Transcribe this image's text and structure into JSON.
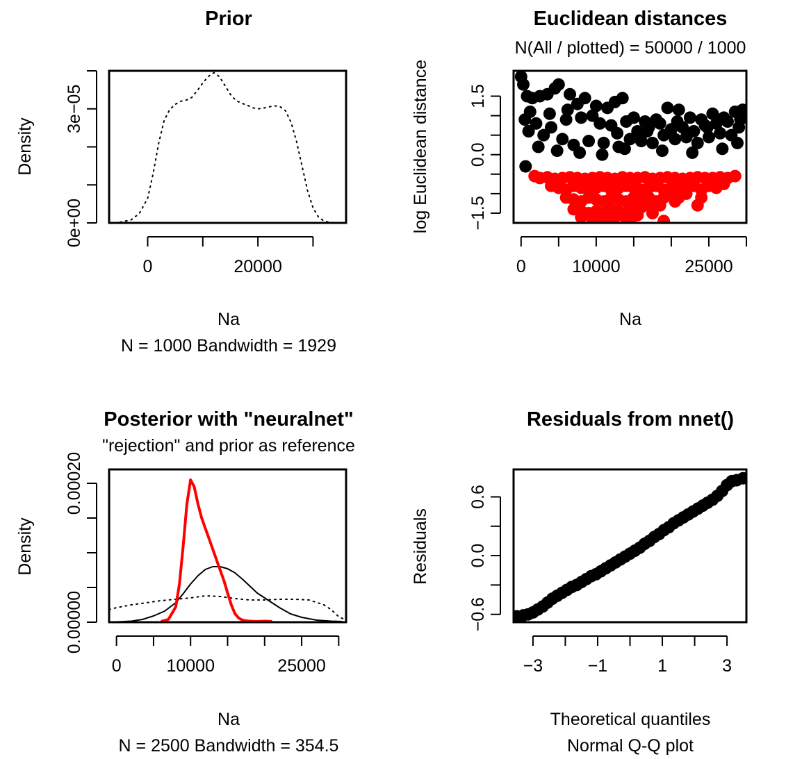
{
  "chart_data": [
    {
      "type": "line",
      "title": "Prior",
      "xlabel": "Na",
      "ylabel": "Density",
      "subtitle": "N = 1000   Bandwidth = 1929",
      "xlim": [
        -7000,
        36000
      ],
      "ylim": [
        0,
        4e-05
      ],
      "xticks": [
        0,
        10000,
        20000,
        30000
      ],
      "xtick_labels": [
        "0",
        "",
        "20000",
        ""
      ],
      "yticks": [
        0,
        1e-05,
        2e-05,
        3e-05,
        4e-05
      ],
      "ytick_labels": [
        "0e+00",
        "",
        "",
        "3e-05",
        ""
      ],
      "baseline": 0,
      "series": [
        {
          "style": "dotted",
          "color": "#000000",
          "x": [
            -5000,
            -3000,
            -1500,
            0,
            1000,
            2000,
            3000,
            4000,
            5000,
            6000,
            7000,
            8000,
            9000,
            10000,
            11000,
            12000,
            13000,
            14000,
            15000,
            16000,
            17000,
            18000,
            19000,
            20000,
            21000,
            22000,
            23000,
            24000,
            25000,
            26000,
            27000,
            28000,
            29000,
            30000,
            31000,
            32000,
            33000,
            34000
          ],
          "y": [
            2e-07,
            8e-07,
            2.5e-06,
            6.5e-06,
            1.3e-05,
            2.1e-05,
            2.7e-05,
            2.98e-05,
            3.12e-05,
            3.2e-05,
            3.23e-05,
            3.3e-05,
            3.48e-05,
            3.68e-05,
            3.85e-05,
            3.95e-05,
            3.85e-05,
            3.62e-05,
            3.38e-05,
            3.22e-05,
            3.15e-05,
            3.1e-05,
            3.03e-05,
            3e-05,
            3.02e-05,
            3.05e-05,
            3.08e-05,
            3.06e-05,
            2.95e-05,
            2.65e-05,
            2.15e-05,
            1.5e-05,
            8.5e-06,
            4e-06,
            1.5e-06,
            5e-07,
            1.5e-07,
            5e-08
          ]
        }
      ]
    },
    {
      "type": "scatter",
      "title": "Euclidean distances",
      "subtitle": "N(All / plotted) =  50000 / 1000",
      "xlabel": "Na",
      "ylabel": "log Euclidean distance",
      "xlim": [
        -1000,
        30000
      ],
      "ylim": [
        -1.75,
        2.15
      ],
      "xticks": [
        0,
        5000,
        10000,
        15000,
        20000,
        25000,
        30000
      ],
      "xtick_labels": [
        "0",
        "",
        "10000",
        "",
        "",
        "25000",
        ""
      ],
      "yticks": [
        -1.5,
        -1.0,
        -0.5,
        0.0,
        0.5,
        1.0,
        1.5
      ],
      "ytick_labels": [
        "-1.5",
        "",
        "",
        "0.0",
        "",
        "",
        "1.5"
      ],
      "series": [
        {
          "name": "",
          "color": "#000000",
          "x": [
            0,
            300,
            800,
            1500,
            2500,
            3500,
            4500,
            5000,
            6500,
            7500,
            8500,
            10000,
            11500,
            12500,
            13500,
            15000,
            16500,
            18000,
            19500,
            21000,
            22500,
            24000,
            25500,
            27000,
            28500,
            29500,
            1000,
            3000,
            5500,
            7000,
            9000,
            11000,
            13000,
            14500,
            16000,
            17500,
            19000,
            20500,
            22000,
            23500,
            25000,
            26500,
            28000,
            29000,
            500,
            2000,
            4000,
            6000,
            8000,
            10500,
            12000,
            14000,
            15500,
            17000,
            18500,
            20000,
            21500,
            23000,
            24500,
            26000,
            27500,
            29200,
            1200,
            3800,
            6200,
            9500,
            12800,
            16800,
            20800,
            24800,
            28800,
            2300,
            4800,
            7800,
            10800,
            13800,
            18800,
            22800,
            26800,
            600
          ],
          "y": [
            2.0,
            1.8,
            1.5,
            1.45,
            1.5,
            1.55,
            1.7,
            1.8,
            1.55,
            1.3,
            1.45,
            1.25,
            1.2,
            1.35,
            1.45,
            0.95,
            0.85,
            0.9,
            1.2,
            1.15,
            0.95,
            0.9,
            1.05,
            0.95,
            1.1,
            1.15,
            0.6,
            0.5,
            0.4,
            0.25,
            0.35,
            0.3,
            0.2,
            0.4,
            0.35,
            0.3,
            0.5,
            0.4,
            0.45,
            0.3,
            0.45,
            0.55,
            0.5,
            0.7,
            0.9,
            0.8,
            0.7,
            0.9,
            0.95,
            0.8,
            0.75,
            0.85,
            0.6,
            0.7,
            0.8,
            0.65,
            0.7,
            0.6,
            0.75,
            0.8,
            0.85,
            0.9,
            1.1,
            1.05,
            1.15,
            1.0,
            0.55,
            0.6,
            0.85,
            0.7,
            0.3,
            0.2,
            0.1,
            0.05,
            0.0,
            0.15,
            0.1,
            0.05,
            0.15,
            -0.3
          ]
        },
        {
          "name": "",
          "color": "#ff0000",
          "x": [
            1800,
            2500,
            3500,
            4500,
            5500,
            6500,
            7500,
            8500,
            9500,
            10500,
            11500,
            12500,
            13500,
            14500,
            15500,
            16500,
            17500,
            18500,
            19500,
            20500,
            21500,
            22500,
            23500,
            24500,
            25500,
            26500,
            27500,
            28500,
            4000,
            5000,
            6000,
            7000,
            8000,
            9000,
            10000,
            11000,
            12000,
            13000,
            14000,
            15000,
            16000,
            17000,
            18000,
            19000,
            20000,
            21000,
            22000,
            23000,
            24000,
            25000,
            26000,
            27000,
            6000,
            7000,
            8000,
            9000,
            10000,
            11000,
            12000,
            13000,
            14000,
            15000,
            16000,
            17000,
            18000,
            19000,
            20000,
            21000,
            22000,
            24000,
            7000,
            8000,
            9000,
            10000,
            11000,
            12000,
            13000,
            14000,
            15000,
            16000,
            17000,
            18500,
            20500,
            23500,
            8000,
            9500,
            11000,
            12500,
            14000,
            15500,
            17500,
            10000,
            12000,
            14500,
            19000
          ],
          "y": [
            -0.55,
            -0.6,
            -0.58,
            -0.62,
            -0.6,
            -0.58,
            -0.6,
            -0.62,
            -0.6,
            -0.58,
            -0.6,
            -0.62,
            -0.58,
            -0.6,
            -0.6,
            -0.58,
            -0.62,
            -0.6,
            -0.58,
            -0.6,
            -0.62,
            -0.6,
            -0.58,
            -0.6,
            -0.6,
            -0.58,
            -0.6,
            -0.55,
            -0.8,
            -0.85,
            -0.9,
            -0.8,
            -0.85,
            -0.9,
            -0.85,
            -0.8,
            -0.9,
            -0.85,
            -0.8,
            -0.85,
            -0.9,
            -0.85,
            -0.8,
            -0.9,
            -0.85,
            -0.8,
            -0.85,
            -0.8,
            -0.9,
            -0.8,
            -0.85,
            -0.75,
            -1.1,
            -1.15,
            -1.2,
            -1.1,
            -1.15,
            -1.2,
            -1.1,
            -1.15,
            -1.2,
            -1.1,
            -1.15,
            -1.1,
            -1.2,
            -1.1,
            -1.05,
            -1.1,
            -1.0,
            -1.1,
            -1.4,
            -1.45,
            -1.5,
            -1.45,
            -1.5,
            -1.4,
            -1.45,
            -1.5,
            -1.4,
            -1.35,
            -1.3,
            -1.3,
            -1.2,
            -1.3,
            -1.6,
            -1.65,
            -1.7,
            -1.6,
            -1.65,
            -1.55,
            -1.5,
            -1.75,
            -1.72,
            -1.7,
            -1.7
          ]
        }
      ]
    },
    {
      "type": "line",
      "title": "Posterior with \"neuralnet\"",
      "subtitle": "\"rejection\" and prior as reference",
      "xlabel": "Na",
      "ylabel": "Density",
      "caption": "N = 2500   Bandwidth = 354.5",
      "xlim": [
        -1000,
        31000
      ],
      "ylim": [
        0,
        0.00022
      ],
      "xticks": [
        0,
        5000,
        10000,
        15000,
        20000,
        25000,
        30000
      ],
      "xtick_labels": [
        "0",
        "",
        "10000",
        "",
        "",
        "25000",
        ""
      ],
      "yticks": [
        0,
        5e-05,
        0.0001,
        0.00015,
        0.0002
      ],
      "ytick_labels": [
        "0.00000",
        "",
        "",
        "",
        "0.00020"
      ],
      "baseline": 0,
      "series": [
        {
          "style": "dotted",
          "color": "#000000",
          "x": [
            -1000,
            0,
            2000,
            4000,
            6000,
            8000,
            10000,
            12000,
            14000,
            16000,
            18000,
            20000,
            22000,
            24000,
            26000,
            28000,
            29000,
            30000,
            31000
          ],
          "y": [
            1.8e-05,
            2.1e-05,
            2.5e-05,
            2.8e-05,
            3.1e-05,
            3.3e-05,
            3.5e-05,
            3.8e-05,
            3.7e-05,
            3.4e-05,
            3.2e-05,
            3.2e-05,
            3.3e-05,
            3.3e-05,
            3.2e-05,
            2.5e-05,
            1.8e-05,
            8e-06,
            3e-06
          ]
        },
        {
          "style": "solid",
          "color": "#000000",
          "x": [
            0,
            2000,
            3500,
            5000,
            6500,
            8000,
            9000,
            10000,
            11000,
            12000,
            13000,
            14000,
            15000,
            16000,
            17000,
            18000,
            19000,
            20000,
            21000,
            22000,
            23500,
            25000,
            27000,
            29000,
            30500
          ],
          "y": [
            5e-07,
            1.5e-06,
            4e-06,
            9e-06,
            1.6e-05,
            2.8e-05,
            4.1e-05,
            5.5e-05,
            6.7e-05,
            7.6e-05,
            8e-05,
            8e-05,
            7.7e-05,
            7.1e-05,
            6.2e-05,
            5.2e-05,
            4.2e-05,
            3.5e-05,
            2.8e-05,
            2.1e-05,
            1.2e-05,
            7e-06,
            3e-06,
            1.5e-06,
            1e-06
          ]
        },
        {
          "style": "solid",
          "color": "#ff0000",
          "x": [
            6000,
            7000,
            8000,
            8500,
            9000,
            9500,
            10000,
            10500,
            11000,
            11500,
            12000,
            12500,
            13000,
            13500,
            14000,
            14500,
            15000,
            15500,
            16000,
            16500,
            17000,
            17500,
            18000,
            19000,
            20000,
            21000
          ],
          "y": [
            1e-06,
            4e-06,
            2.2e-05,
            5.5e-05,
            0.00011,
            0.00017,
            0.000205,
            0.000195,
            0.00017,
            0.00015,
            0.000135,
            0.00012,
            0.000105,
            9e-05,
            7.5e-05,
            6e-05,
            4.2e-05,
            2.5e-05,
            1.2e-05,
            6e-06,
            3e-06,
            2e-06,
            1.5e-06,
            1e-06,
            1.5e-06,
            1e-06
          ]
        }
      ]
    },
    {
      "type": "scatter",
      "title": "Residuals from nnet()",
      "xlabel": "Theoretical quantiles",
      "ylabel": "Residuals",
      "caption": "Normal Q-Q plot",
      "xlim": [
        -3.6,
        3.6
      ],
      "ylim": [
        -0.68,
        0.88
      ],
      "xticks": [
        -3,
        -2,
        -1,
        0,
        1,
        2,
        3
      ],
      "xtick_labels": [
        "-3",
        "",
        "-1",
        "",
        "1",
        "",
        "3"
      ],
      "yticks": [
        -0.6,
        -0.3,
        0.0,
        0.3,
        0.6
      ],
      "ytick_labels": [
        "-0.6",
        "",
        "0.0",
        "",
        "0.6"
      ],
      "series": [
        {
          "name": "",
          "color": "#000000",
          "x": [
            -3.5,
            -3.3,
            -3.15,
            -3.0,
            -2.85,
            -2.7,
            -2.55,
            -2.4,
            -2.25,
            -2.1,
            -1.95,
            -1.8,
            -1.65,
            -1.5,
            -1.35,
            -1.2,
            -1.05,
            -0.9,
            -0.75,
            -0.6,
            -0.45,
            -0.3,
            -0.15,
            0.0,
            0.15,
            0.3,
            0.45,
            0.6,
            0.75,
            0.9,
            1.05,
            1.2,
            1.35,
            1.5,
            1.65,
            1.8,
            1.95,
            2.1,
            2.25,
            2.4,
            2.55,
            2.7,
            2.85,
            3.0,
            3.15,
            3.3,
            3.5
          ],
          "y": [
            -0.62,
            -0.61,
            -0.6,
            -0.58,
            -0.55,
            -0.52,
            -0.48,
            -0.44,
            -0.41,
            -0.38,
            -0.35,
            -0.32,
            -0.3,
            -0.27,
            -0.24,
            -0.21,
            -0.19,
            -0.16,
            -0.13,
            -0.1,
            -0.07,
            -0.04,
            -0.01,
            0.02,
            0.05,
            0.08,
            0.12,
            0.15,
            0.19,
            0.22,
            0.26,
            0.29,
            0.33,
            0.36,
            0.39,
            0.42,
            0.45,
            0.48,
            0.51,
            0.54,
            0.57,
            0.61,
            0.66,
            0.72,
            0.76,
            0.77,
            0.79
          ]
        }
      ]
    }
  ]
}
